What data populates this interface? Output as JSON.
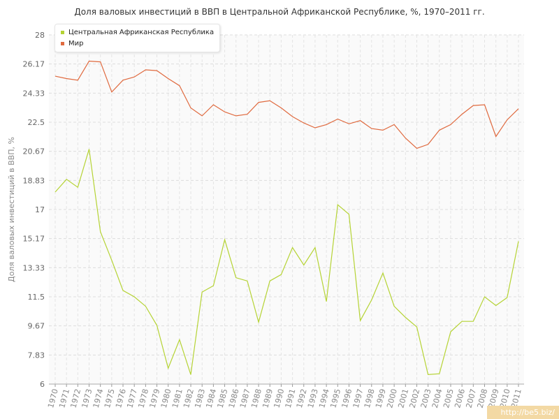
{
  "chart_data": {
    "type": "line",
    "title": "Доля валовых инвестиций в ВВП в Центральной Африканской Республике, %, 1970–2011 гг.",
    "ylabel": "Доля валовых инвестиций в ВВП, %",
    "xlabel": "",
    "ylim": [
      6,
      28
    ],
    "yticks": [
      "6",
      "7.83",
      "9.67",
      "11.5",
      "13.33",
      "15.17",
      "17",
      "18.83",
      "20.67",
      "22.5",
      "24.33",
      "26.17",
      "28"
    ],
    "x": [
      "1970",
      "1971",
      "1972",
      "1973",
      "1974",
      "1975",
      "1976",
      "1977",
      "1978",
      "1979",
      "1980",
      "1981",
      "1982",
      "1983",
      "1984",
      "1985",
      "1986",
      "1987",
      "1988",
      "1989",
      "1990",
      "1991",
      "1992",
      "1993",
      "1994",
      "1995",
      "1996",
      "1997",
      "1998",
      "1999",
      "2000",
      "2001",
      "2002",
      "2003",
      "2004",
      "2005",
      "2006",
      "2007",
      "2008",
      "2009",
      "2010",
      "2011"
    ],
    "series": [
      {
        "name": "Центральная Африканская Республика",
        "color": "#b5d334",
        "values": [
          18.1,
          18.9,
          18.4,
          20.8,
          15.6,
          13.8,
          11.9,
          11.5,
          10.9,
          9.7,
          7.0,
          8.8,
          6.6,
          11.8,
          12.2,
          15.1,
          12.7,
          12.5,
          9.9,
          12.5,
          12.9,
          14.6,
          13.5,
          14.6,
          11.2,
          17.3,
          16.7,
          10.0,
          11.3,
          13.0,
          10.9,
          10.2,
          9.6,
          6.6,
          6.65,
          9.3,
          9.95,
          9.95,
          11.5,
          10.95,
          11.45,
          15.0
        ]
      },
      {
        "name": "Мир",
        "color": "#e06a3f",
        "values": [
          25.4,
          25.25,
          25.15,
          26.35,
          26.3,
          24.4,
          25.15,
          25.35,
          25.8,
          25.75,
          25.25,
          24.8,
          23.4,
          22.9,
          23.6,
          23.15,
          22.9,
          23.0,
          23.75,
          23.85,
          23.4,
          22.85,
          22.45,
          22.15,
          22.35,
          22.7,
          22.4,
          22.6,
          22.1,
          22.0,
          22.35,
          21.5,
          20.85,
          21.1,
          22.0,
          22.35,
          23.0,
          23.55,
          23.6,
          21.6,
          22.65,
          23.35
        ]
      }
    ],
    "grid": true,
    "legend_position": "top-left"
  },
  "watermark": "http://be5.biz/"
}
